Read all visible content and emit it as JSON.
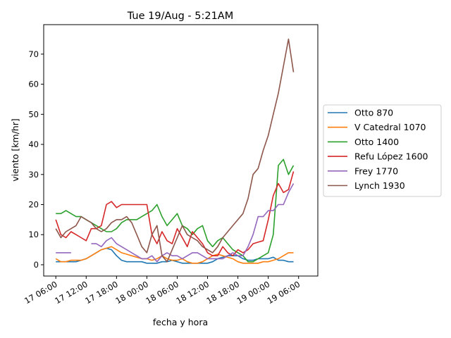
{
  "chart_data": {
    "type": "line",
    "title": "Tue 19/Aug - 5:21AM",
    "xlabel": "fecha y hora",
    "ylabel": "viento [km/hr]",
    "xlim": [
      "17 03:36",
      "19 09:48"
    ],
    "ylim": [
      -3.75,
      79.8
    ],
    "x_ticks": [
      "17 06:00",
      "17 12:00",
      "17 18:00",
      "18 00:00",
      "18 06:00",
      "18 12:00",
      "18 18:00",
      "19 00:00",
      "19 06:00"
    ],
    "y_ticks": [
      0,
      10,
      20,
      30,
      40,
      50,
      60,
      70
    ],
    "grid": false,
    "legend_placement": "center-right outside",
    "x": [
      "17 06:00",
      "17 07:00",
      "17 08:00",
      "17 09:00",
      "17 10:00",
      "17 11:00",
      "17 12:00",
      "17 13:00",
      "17 14:00",
      "17 15:00",
      "17 16:00",
      "17 17:00",
      "17 18:00",
      "17 19:00",
      "17 20:00",
      "17 21:00",
      "17 22:00",
      "17 23:00",
      "18 00:00",
      "18 01:00",
      "18 02:00",
      "18 03:00",
      "18 04:00",
      "18 05:00",
      "18 06:00",
      "18 07:00",
      "18 08:00",
      "18 09:00",
      "18 10:00",
      "18 11:00",
      "18 12:00",
      "18 13:00",
      "18 14:00",
      "18 15:00",
      "18 16:00",
      "18 17:00",
      "18 18:00",
      "18 19:00",
      "18 20:00",
      "18 21:00",
      "18 22:00",
      "18 23:00",
      "19 00:00",
      "19 01:00",
      "19 02:00",
      "19 03:00",
      "19 04:00",
      "19 05:00"
    ],
    "series": [
      {
        "name": "Otto 870",
        "color": "#1f77b4",
        "values": [
          1,
          1,
          1,
          1,
          1,
          1.5,
          2,
          3,
          4,
          5,
          5.5,
          5,
          3,
          1.5,
          1,
          1,
          1,
          1,
          0.5,
          0.5,
          0.5,
          1,
          1,
          1.5,
          1,
          0.5,
          0.5,
          0.5,
          0.5,
          0.5,
          0.5,
          1,
          2,
          2.5,
          3,
          3,
          3,
          2,
          1.5,
          1.5,
          2,
          2,
          2,
          2.5,
          1.5,
          1.5,
          1,
          1
        ]
      },
      {
        "name": "V Catedral 1070",
        "color": "#ff7f0e",
        "values": [
          2,
          1,
          1,
          1.5,
          1.5,
          1.5,
          2,
          3,
          4,
          5,
          5.5,
          6,
          5,
          4,
          3.5,
          3,
          2.5,
          2,
          2,
          1.5,
          2,
          3,
          2,
          1.5,
          1.5,
          2,
          1,
          0.5,
          0.5,
          1,
          2,
          3,
          3.5,
          3,
          2.5,
          2,
          1,
          0.5,
          0.5,
          0.5,
          0.5,
          1,
          1,
          1.5,
          2,
          3,
          4,
          4
        ]
      },
      {
        "name": "Otto 1400",
        "color": "#2ca02c",
        "values": [
          17,
          17,
          18,
          17,
          16,
          16,
          15,
          14,
          13,
          12,
          11,
          11,
          12,
          14,
          15,
          15,
          15,
          16,
          17,
          18,
          20,
          16,
          13,
          15,
          17,
          13,
          12,
          10,
          12,
          13,
          8,
          6,
          8,
          9,
          7,
          5,
          4,
          3,
          1,
          1,
          2,
          3,
          4,
          10,
          33,
          35,
          30,
          33
        ]
      },
      {
        "name": "Refu López 1600",
        "color": "#d62728",
        "values": [
          15,
          10,
          9,
          11,
          10,
          9,
          8,
          12,
          12,
          13,
          20,
          21,
          19,
          20,
          20,
          20,
          20,
          20,
          20,
          10,
          7,
          11,
          8,
          7,
          12,
          9,
          6,
          11,
          9,
          7,
          4,
          3,
          3,
          6,
          4,
          3,
          5,
          4,
          5,
          7,
          7.5,
          8,
          15,
          23,
          27,
          24,
          25,
          31
        ]
      },
      {
        "name": "Frey 1770",
        "color": "#9467bd",
        "values": [
          4,
          4,
          4,
          4,
          null,
          null,
          null,
          7,
          7,
          6,
          8,
          9,
          7,
          6,
          5,
          4,
          3,
          2,
          2,
          3,
          1,
          3,
          4,
          3,
          3,
          2,
          3,
          4,
          4,
          3,
          2,
          2,
          2,
          2,
          3,
          4,
          3,
          3,
          6,
          10,
          16,
          16,
          18,
          18,
          20,
          20,
          24,
          27
        ]
      },
      {
        "name": "Lynch 1930",
        "color": "#8c564b",
        "values": [
          12,
          9,
          11,
          12,
          13,
          16,
          15,
          14,
          12,
          11,
          12,
          14,
          15,
          15,
          16,
          14,
          10,
          6,
          4,
          10,
          13,
          3,
          1,
          5,
          9,
          13,
          10,
          9,
          8,
          6,
          5,
          4,
          6,
          9,
          11,
          13,
          15,
          17,
          22,
          30,
          32,
          38,
          43,
          50,
          57,
          66,
          75,
          64
        ]
      }
    ]
  }
}
